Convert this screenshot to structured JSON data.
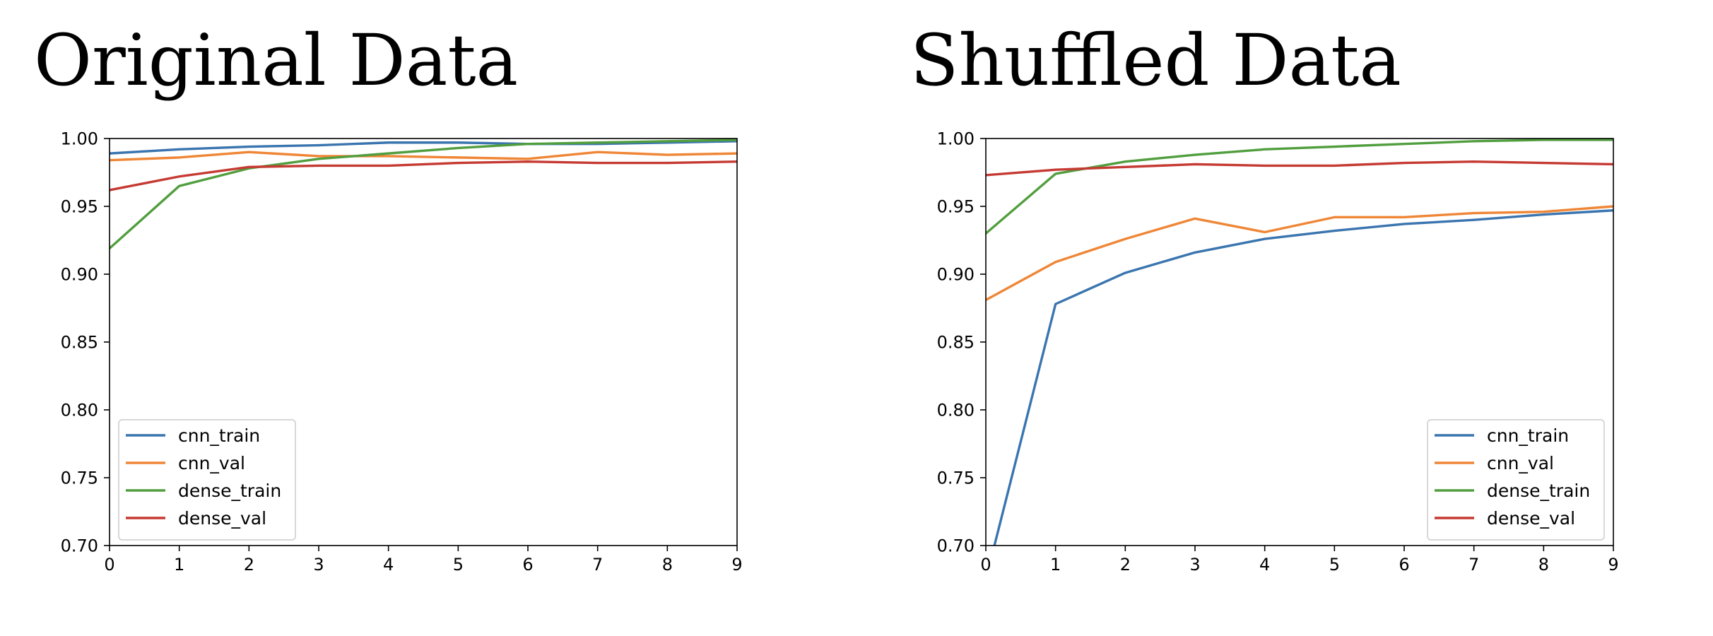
{
  "chart_data": [
    {
      "type": "line",
      "title": "Original Data",
      "xlabel": "",
      "ylabel": "",
      "x": [
        0,
        1,
        2,
        3,
        4,
        5,
        6,
        7,
        8,
        9
      ],
      "xlim": [
        0,
        9
      ],
      "ylim": [
        0.7,
        1.0
      ],
      "xticks": [
        "0",
        "1",
        "2",
        "3",
        "4",
        "5",
        "6",
        "7",
        "8",
        "9"
      ],
      "yticks": [
        "0.70",
        "0.75",
        "0.80",
        "0.85",
        "0.90",
        "0.95",
        "1.00"
      ],
      "grid": false,
      "legend_position": "lower-left",
      "series": [
        {
          "name": "cnn_train",
          "color": "#3a75af",
          "values": [
            0.989,
            0.992,
            0.994,
            0.995,
            0.997,
            0.997,
            0.996,
            0.996,
            0.997,
            0.998
          ]
        },
        {
          "name": "cnn_val",
          "color": "#ef8636",
          "values": [
            0.984,
            0.986,
            0.99,
            0.987,
            0.987,
            0.986,
            0.985,
            0.99,
            0.988,
            0.989
          ]
        },
        {
          "name": "dense_train",
          "color": "#519e3e",
          "values": [
            0.919,
            0.965,
            0.978,
            0.985,
            0.989,
            0.993,
            0.996,
            0.997,
            0.998,
            0.999
          ]
        },
        {
          "name": "dense_val",
          "color": "#c53a32",
          "values": [
            0.962,
            0.972,
            0.979,
            0.98,
            0.98,
            0.982,
            0.983,
            0.982,
            0.982,
            0.983
          ]
        }
      ]
    },
    {
      "type": "line",
      "title": "Shuffled Data",
      "xlabel": "",
      "ylabel": "",
      "x": [
        0,
        1,
        2,
        3,
        4,
        5,
        6,
        7,
        8,
        9
      ],
      "xlim": [
        0,
        9
      ],
      "ylim": [
        0.7,
        1.0
      ],
      "xticks": [
        "0",
        "1",
        "2",
        "3",
        "4",
        "5",
        "6",
        "7",
        "8",
        "9"
      ],
      "yticks": [
        "0.70",
        "0.75",
        "0.80",
        "0.85",
        "0.90",
        "0.95",
        "1.00"
      ],
      "grid": false,
      "legend_position": "lower-right",
      "series": [
        {
          "name": "cnn_train",
          "color": "#3a75af",
          "values": [
            0.675,
            0.878,
            0.901,
            0.916,
            0.926,
            0.932,
            0.937,
            0.94,
            0.944,
            0.947
          ]
        },
        {
          "name": "cnn_val",
          "color": "#ef8636",
          "values": [
            0.881,
            0.909,
            0.926,
            0.941,
            0.931,
            0.942,
            0.942,
            0.945,
            0.946,
            0.95
          ]
        },
        {
          "name": "dense_train",
          "color": "#519e3e",
          "values": [
            0.93,
            0.974,
            0.983,
            0.988,
            0.992,
            0.994,
            0.996,
            0.998,
            0.999,
            0.999
          ]
        },
        {
          "name": "dense_val",
          "color": "#c53a32",
          "values": [
            0.973,
            0.977,
            0.979,
            0.981,
            0.98,
            0.98,
            0.982,
            0.983,
            0.982,
            0.981
          ]
        }
      ]
    }
  ]
}
